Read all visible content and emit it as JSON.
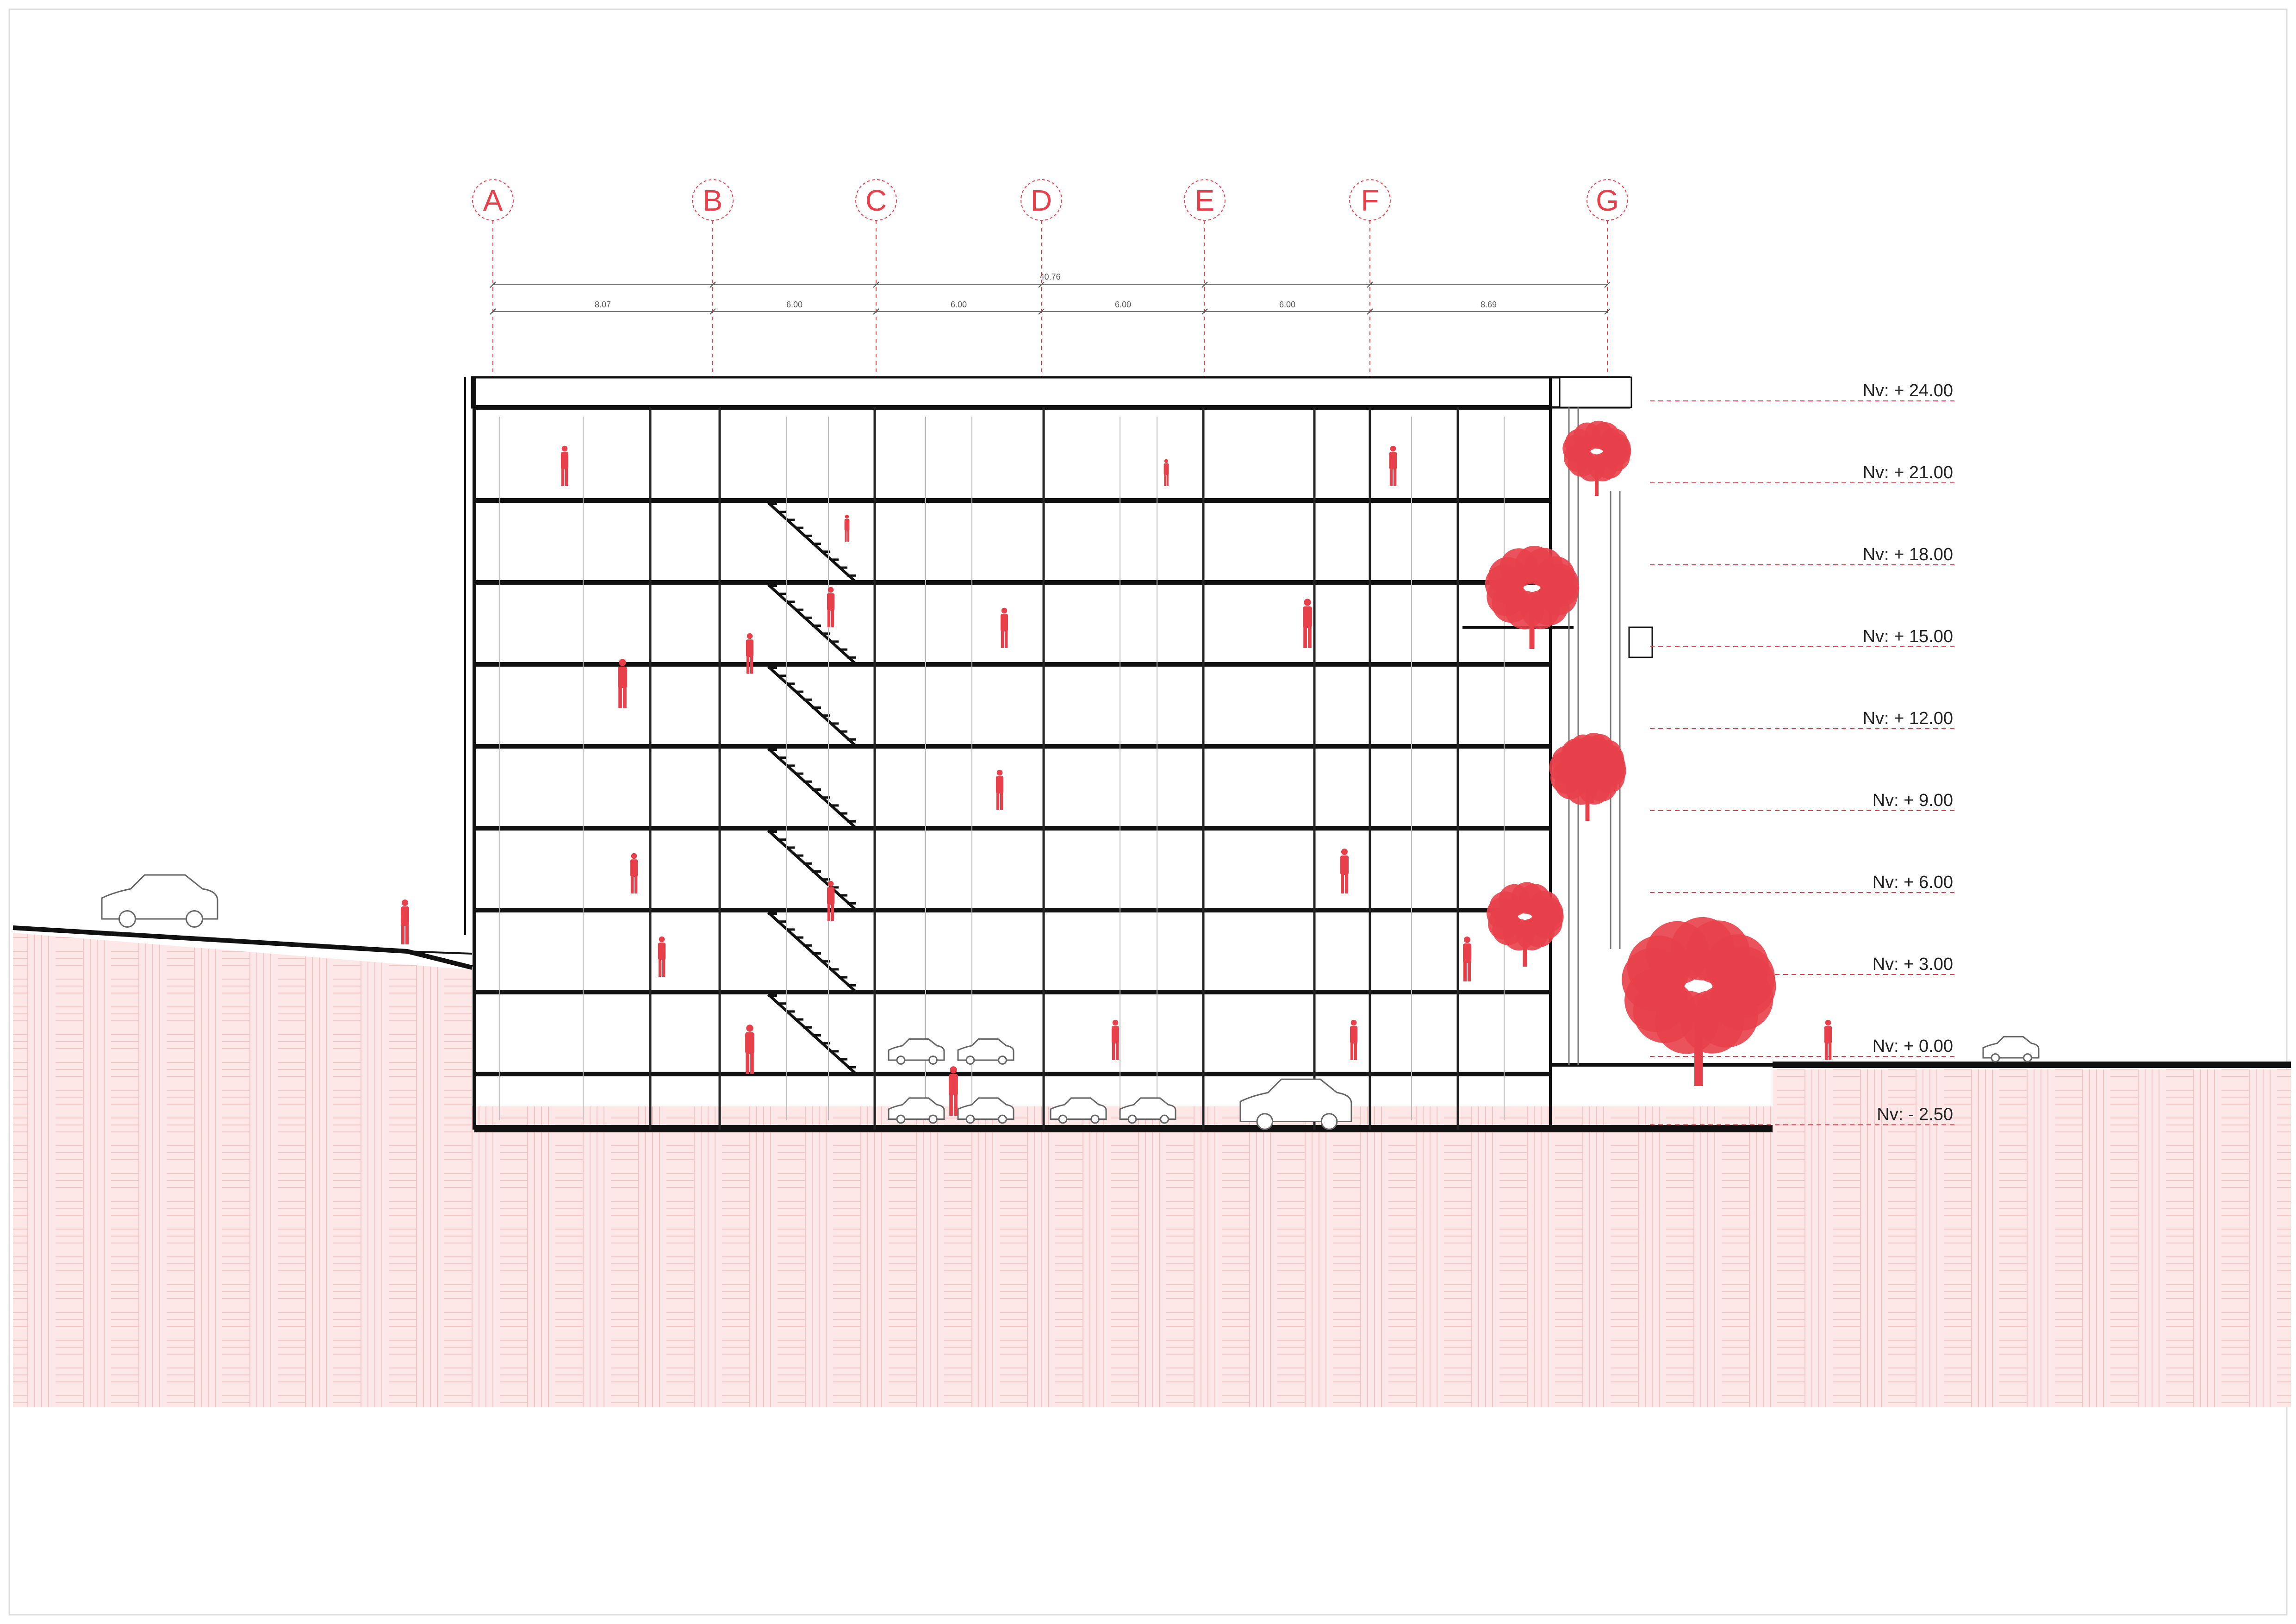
{
  "drawing": {
    "type": "building cross-section",
    "accent_color": "#e8404a",
    "ground_fill": "#fde8e8",
    "line_color": "#111111"
  },
  "grid_axes": [
    {
      "id": "A",
      "label": "A"
    },
    {
      "id": "B",
      "label": "B"
    },
    {
      "id": "C",
      "label": "C"
    },
    {
      "id": "D",
      "label": "D"
    },
    {
      "id": "E",
      "label": "E"
    },
    {
      "id": "F",
      "label": "F"
    },
    {
      "id": "G",
      "label": "G"
    }
  ],
  "dimensions": {
    "overall": "40.76",
    "spans": [
      "8.07",
      "6.00",
      "6.00",
      "6.00",
      "6.00",
      "8.69"
    ]
  },
  "levels": [
    {
      "label": "Nv: + 24.00",
      "value": 24.0
    },
    {
      "label": "Nv: + 21.00",
      "value": 21.0
    },
    {
      "label": "Nv: + 18.00",
      "value": 18.0
    },
    {
      "label": "Nv: + 15.00",
      "value": 15.0
    },
    {
      "label": "Nv: + 12.00",
      "value": 12.0
    },
    {
      "label": "Nv: + 9.00",
      "value": 9.0
    },
    {
      "label": "Nv: + 6.00",
      "value": 6.0
    },
    {
      "label": "Nv: + 3.00",
      "value": 3.0
    },
    {
      "label": "Nv: + 0.00",
      "value": 0.0
    },
    {
      "label": "Nv: - 2.50",
      "value": -2.5
    }
  ],
  "figures": {
    "people_icon": "person-silhouette-icon",
    "tree_icon": "tree-icon",
    "car_icon": "car-icon"
  }
}
